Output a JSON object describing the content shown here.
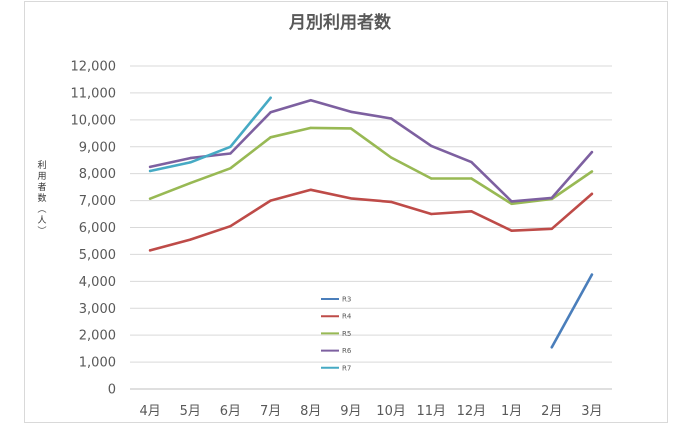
{
  "chart_data": {
    "type": "line",
    "title": "月別利用者数",
    "ylabel": "利用者数(人)",
    "xlabel": "",
    "categories": [
      "4月",
      "5月",
      "6月",
      "7月",
      "8月",
      "9月",
      "10月",
      "11月",
      "12月",
      "1月",
      "2月",
      "3月"
    ],
    "ylim": [
      0,
      12000
    ],
    "yticks": [
      "0",
      "1,000",
      "2,000",
      "3,000",
      "4,000",
      "5,000",
      "6,000",
      "7,000",
      "8,000",
      "9,000",
      "10,000",
      "11,000",
      "12,000"
    ],
    "grid": true,
    "legend_position": "center-left",
    "series": [
      {
        "name": "R3",
        "color": "#4a7ebb",
        "values": [
          null,
          null,
          null,
          null,
          null,
          null,
          null,
          null,
          null,
          null,
          1550,
          4250
        ]
      },
      {
        "name": "R4",
        "color": "#be4b48",
        "values": [
          5150,
          5550,
          6050,
          7000,
          7400,
          7080,
          6950,
          6500,
          6600,
          5880,
          5950,
          7250
        ]
      },
      {
        "name": "R5",
        "color": "#98b954",
        "values": [
          7070,
          7650,
          8200,
          9350,
          9700,
          9680,
          8600,
          7820,
          7820,
          6880,
          7060,
          8080
        ]
      },
      {
        "name": "R6",
        "color": "#7d60a0",
        "values": [
          8250,
          8580,
          8750,
          10280,
          10730,
          10300,
          10050,
          9030,
          8430,
          6970,
          7100,
          8800
        ]
      },
      {
        "name": "R7",
        "color": "#46aac4",
        "values": [
          8100,
          8420,
          9000,
          10820,
          null,
          null,
          null,
          null,
          null,
          null,
          null,
          null
        ]
      }
    ]
  }
}
